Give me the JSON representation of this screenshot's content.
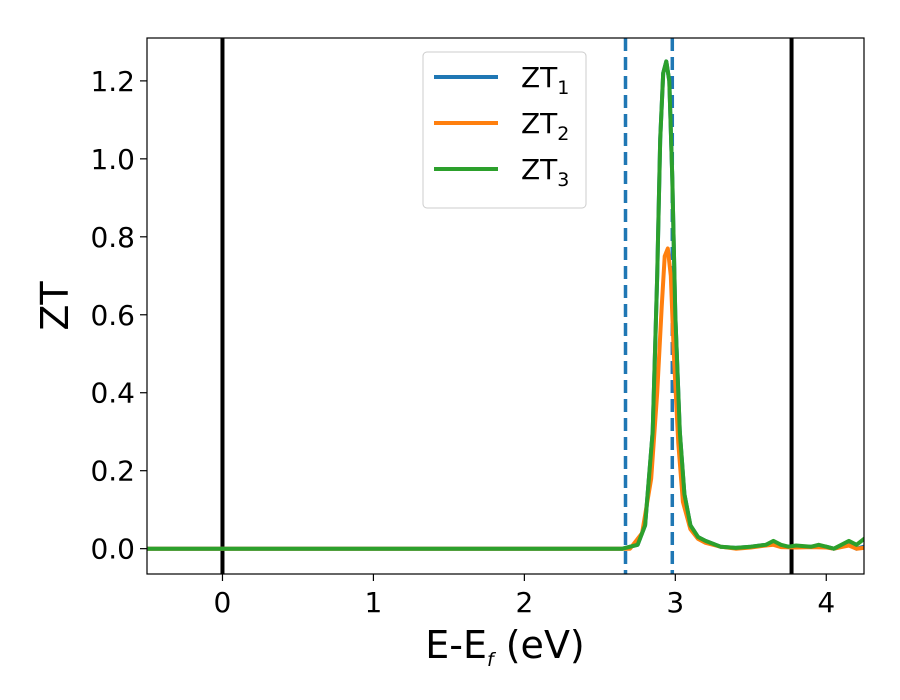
{
  "chart_data": {
    "type": "line",
    "xlabel": {
      "main": "E-E",
      "sub": "f",
      "tail": " (eV)"
    },
    "ylabel": "ZT",
    "xlim": [
      -0.5,
      4.25
    ],
    "ylim": [
      -0.065,
      1.31
    ],
    "xticks": [
      0,
      1,
      2,
      3,
      4
    ],
    "yticks": [
      0.0,
      0.2,
      0.4,
      0.6,
      0.8,
      1.0,
      1.2
    ],
    "xtick_labels": [
      "0",
      "1",
      "2",
      "3",
      "4"
    ],
    "ytick_labels": [
      "0.0",
      "0.2",
      "0.4",
      "0.6",
      "0.8",
      "1.0",
      "1.2"
    ],
    "legend_position": "top-center",
    "vlines": [
      {
        "x": 0.0,
        "style": "solid",
        "color": "#000000"
      },
      {
        "x": 3.77,
        "style": "solid",
        "color": "#000000"
      },
      {
        "x": 2.67,
        "style": "dashed",
        "color": "#1f77b4"
      },
      {
        "x": 2.98,
        "style": "dashed",
        "color": "#1f77b4"
      }
    ],
    "series": [
      {
        "name": {
          "main": "ZT",
          "sub": "1"
        },
        "color": "#1f77b4",
        "x": [
          -0.5,
          2.65,
          2.75,
          2.8,
          2.85,
          2.88,
          2.9,
          2.92,
          2.94,
          2.96,
          2.98,
          3.0,
          3.03,
          3.06,
          3.1,
          3.15,
          3.2,
          3.3,
          3.4,
          3.5,
          3.6,
          3.65,
          3.7,
          3.8,
          3.9,
          4.0,
          4.05,
          4.1,
          4.15,
          4.2,
          4.25
        ],
        "y": [
          0.0,
          0.0,
          0.01,
          0.06,
          0.3,
          0.7,
          1.05,
          1.22,
          1.25,
          1.2,
          0.95,
          0.6,
          0.3,
          0.14,
          0.06,
          0.03,
          0.02,
          0.005,
          0.002,
          0.005,
          0.01,
          0.012,
          0.005,
          0.005,
          0.005,
          0.005,
          0.0,
          0.005,
          0.01,
          0.0,
          0.005
        ]
      },
      {
        "name": {
          "main": "ZT",
          "sub": "2"
        },
        "color": "#ff7f0e",
        "x": [
          -0.5,
          2.7,
          2.78,
          2.84,
          2.88,
          2.91,
          2.93,
          2.95,
          2.97,
          2.99,
          3.02,
          3.05,
          3.1,
          3.15,
          3.2,
          3.3,
          3.4,
          3.5,
          3.6,
          3.65,
          3.7,
          3.8,
          3.9,
          4.0,
          4.05,
          4.1,
          4.15,
          4.2,
          4.25
        ],
        "y": [
          0.0,
          0.0,
          0.04,
          0.18,
          0.4,
          0.62,
          0.75,
          0.77,
          0.7,
          0.5,
          0.27,
          0.12,
          0.05,
          0.025,
          0.015,
          0.005,
          0.0,
          0.003,
          0.008,
          0.01,
          0.004,
          0.003,
          0.004,
          0.003,
          0.0,
          0.004,
          0.008,
          0.0,
          0.002
        ]
      },
      {
        "name": {
          "main": "ZT",
          "sub": "3"
        },
        "color": "#2ca02c",
        "x": [
          -0.5,
          2.65,
          2.75,
          2.8,
          2.85,
          2.88,
          2.9,
          2.92,
          2.94,
          2.96,
          2.98,
          3.0,
          3.03,
          3.06,
          3.1,
          3.15,
          3.2,
          3.3,
          3.4,
          3.5,
          3.6,
          3.65,
          3.7,
          3.75,
          3.8,
          3.9,
          3.95,
          4.0,
          4.05,
          4.1,
          4.15,
          4.2,
          4.25
        ],
        "y": [
          0.0,
          0.0,
          0.01,
          0.06,
          0.3,
          0.7,
          1.05,
          1.22,
          1.25,
          1.2,
          0.95,
          0.6,
          0.3,
          0.14,
          0.06,
          0.03,
          0.02,
          0.005,
          0.002,
          0.005,
          0.01,
          0.02,
          0.01,
          0.005,
          0.008,
          0.005,
          0.01,
          0.005,
          0.0,
          0.01,
          0.02,
          0.01,
          0.025
        ]
      }
    ]
  }
}
